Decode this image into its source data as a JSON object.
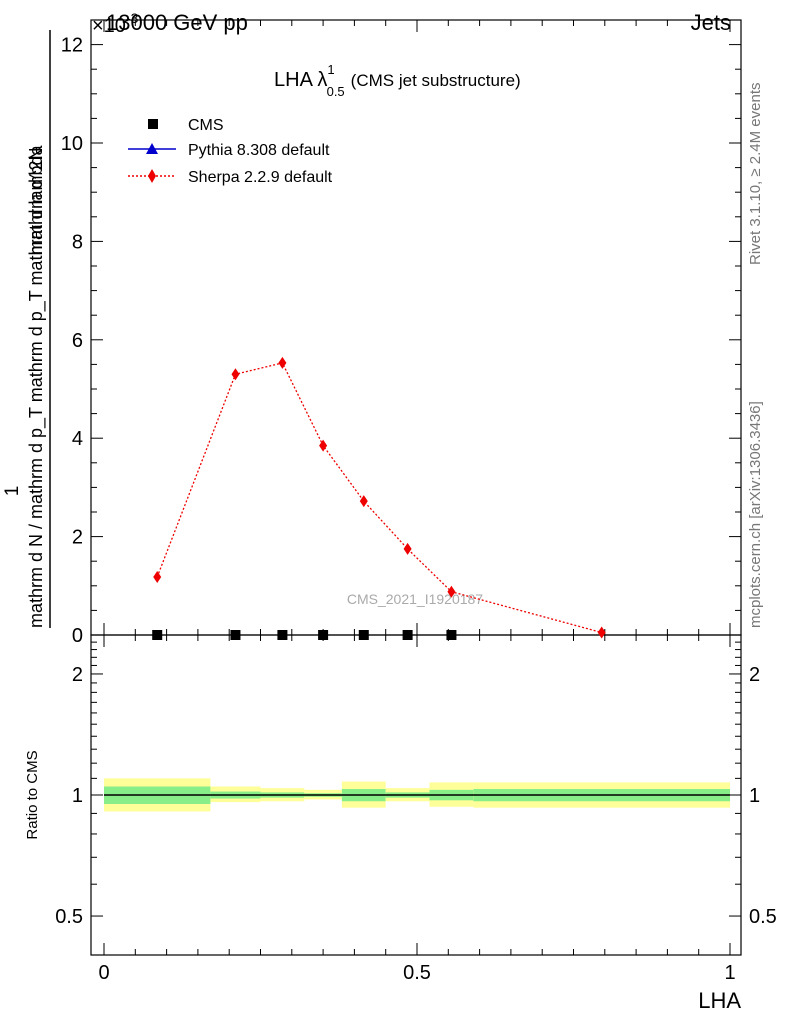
{
  "header": {
    "left": "13000 GeV pp",
    "right": "Jets",
    "multiplier": "×10",
    "multiplier_exp": "-3"
  },
  "side_labels": {
    "rivet": "Rivet 3.1.10, ≥ 2.4M events",
    "mcplots": "mcplots.cern.ch [arXiv:1306.3436]"
  },
  "plot_title": {
    "main": "LHA λ",
    "sup": "1",
    "sub": "0.5",
    "note": "(CMS jet substructure)"
  },
  "watermark": "CMS_2021_I1920187",
  "ylabel_main": {
    "one": "1",
    "denominator": "mathrm d N / mathrm d p_T mathrm d p_T mathrm d lambda",
    "numerator": "mathrm d^2N"
  },
  "ylabel_ratio": "Ratio to CMS",
  "xlabel": "LHA",
  "colors": {
    "cms": "#000000",
    "pythia": "#0000cc",
    "sherpa": "#ee0000",
    "band_outer": "#ffff99",
    "band_inner": "#88ee88"
  },
  "chart_data": [
    {
      "type": "line",
      "panel": "main",
      "ylim": [
        0,
        0.0125
      ],
      "xlim": [
        0,
        1
      ],
      "y_multiplier": "1e-3",
      "yticks": [
        {
          "v": 0,
          "label": "0"
        },
        {
          "v": 0.002,
          "label": "2"
        },
        {
          "v": 0.004,
          "label": "4"
        },
        {
          "v": 0.006,
          "label": "6"
        },
        {
          "v": 0.008,
          "label": "8"
        },
        {
          "v": 0.01,
          "label": "10"
        },
        {
          "v": 0.012,
          "label": "12"
        }
      ],
      "legend": [
        {
          "name": "CMS",
          "marker": "square"
        },
        {
          "name": "Pythia 8.308 default",
          "marker": "triangle"
        },
        {
          "name": "Sherpa 2.2.9 default",
          "marker": "diamond"
        }
      ],
      "series": [
        {
          "name": "CMS",
          "x": [
            0.085,
            0.21,
            0.285,
            0.35,
            0.415,
            0.485,
            0.555
          ],
          "y": [
            0,
            0,
            0,
            0,
            0,
            0,
            0
          ]
        },
        {
          "name": "Pythia 8.308 default",
          "x": [
            0.085,
            0.21,
            0.285,
            0.35,
            0.415,
            0.485,
            0.555
          ],
          "y": [
            0,
            0,
            0,
            0,
            0,
            0,
            0
          ]
        },
        {
          "name": "Sherpa 2.2.9 default",
          "x": [
            0.085,
            0.21,
            0.285,
            0.35,
            0.415,
            0.485,
            0.555,
            0.795
          ],
          "y": [
            0.00118,
            0.0053,
            0.00553,
            0.00385,
            0.00272,
            0.00175,
            0.00088,
            5e-05
          ]
        }
      ]
    },
    {
      "type": "area",
      "panel": "ratio",
      "yscale": "log",
      "ylim": [
        0.4,
        2.5
      ],
      "xlim": [
        0,
        1
      ],
      "yticks": [
        {
          "v": 0.5,
          "label": "0.5"
        },
        {
          "v": 1,
          "label": "1"
        },
        {
          "v": 2,
          "label": "2"
        }
      ],
      "xticks": [
        {
          "v": 0,
          "label": "0"
        },
        {
          "v": 0.5,
          "label": "0.5"
        },
        {
          "v": 1,
          "label": "1"
        }
      ],
      "bins": [
        {
          "x0": 0.0,
          "x1": 0.17,
          "outer": [
            0.91,
            1.1
          ],
          "inner": [
            0.95,
            1.05
          ]
        },
        {
          "x0": 0.17,
          "x1": 0.25,
          "outer": [
            0.96,
            1.05
          ],
          "inner": [
            0.98,
            1.02
          ]
        },
        {
          "x0": 0.25,
          "x1": 0.32,
          "outer": [
            0.965,
            1.04
          ],
          "inner": [
            0.985,
            1.015
          ]
        },
        {
          "x0": 0.32,
          "x1": 0.38,
          "outer": [
            0.975,
            1.03
          ],
          "inner": [
            0.99,
            1.01
          ]
        },
        {
          "x0": 0.38,
          "x1": 0.45,
          "outer": [
            0.93,
            1.08
          ],
          "inner": [
            0.965,
            1.035
          ]
        },
        {
          "x0": 0.45,
          "x1": 0.52,
          "outer": [
            0.965,
            1.04
          ],
          "inner": [
            0.985,
            1.015
          ]
        },
        {
          "x0": 0.52,
          "x1": 0.59,
          "outer": [
            0.935,
            1.075
          ],
          "inner": [
            0.97,
            1.03
          ]
        },
        {
          "x0": 0.59,
          "x1": 1.0,
          "outer": [
            0.93,
            1.075
          ],
          "inner": [
            0.965,
            1.035
          ]
        }
      ],
      "reference": 1
    }
  ]
}
